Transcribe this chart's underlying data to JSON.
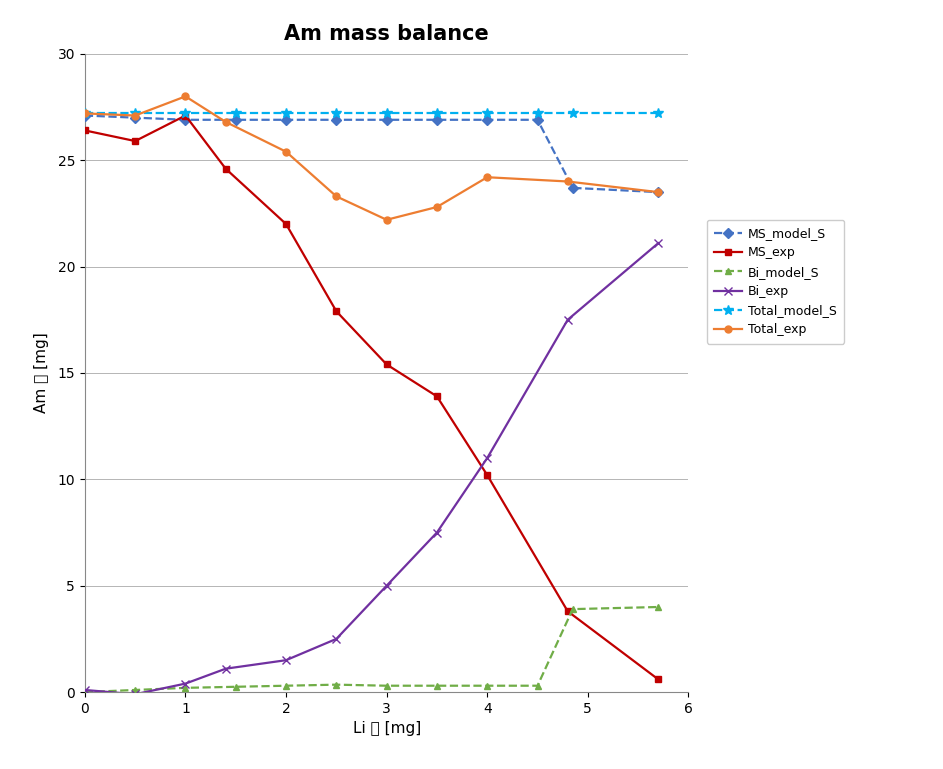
{
  "title": "Am mass balance",
  "xlabel": "Li 양 [mg]",
  "ylabel": "Am 양 [mg]",
  "xlim": [
    0,
    6
  ],
  "ylim": [
    0,
    30
  ],
  "yticks": [
    0,
    5,
    10,
    15,
    20,
    25,
    30
  ],
  "xticks": [
    0,
    1,
    2,
    3,
    4,
    5,
    6
  ],
  "MS_model_S": {
    "x": [
      0,
      0.5,
      1.0,
      1.5,
      2.0,
      2.5,
      3.0,
      3.5,
      4.0,
      4.5,
      4.85,
      5.7
    ],
    "y": [
      27.1,
      27.0,
      26.9,
      26.9,
      26.9,
      26.9,
      26.9,
      26.9,
      26.9,
      26.9,
      23.7,
      23.5
    ],
    "color": "#4472C4",
    "linestyle": "--",
    "marker": "D",
    "markersize": 5,
    "markerfacecolor": "#4472C4",
    "label": "MS_model_S"
  },
  "MS_exp": {
    "x": [
      0,
      0.5,
      1.0,
      1.4,
      2.0,
      2.5,
      3.0,
      3.5,
      4.0,
      4.8,
      5.7
    ],
    "y": [
      26.4,
      25.9,
      27.1,
      24.6,
      22.0,
      17.9,
      15.4,
      13.9,
      10.2,
      3.8,
      0.6
    ],
    "color": "#C00000",
    "linestyle": "-",
    "marker": "s",
    "markersize": 5,
    "markerfacecolor": "#C00000",
    "label": "MS_exp"
  },
  "Bi_model_S": {
    "x": [
      0,
      0.5,
      1.0,
      1.5,
      2.0,
      2.5,
      3.0,
      3.5,
      4.0,
      4.5,
      4.85,
      5.7
    ],
    "y": [
      0.0,
      0.1,
      0.2,
      0.25,
      0.3,
      0.35,
      0.3,
      0.3,
      0.3,
      0.3,
      3.9,
      4.0
    ],
    "color": "#70AD47",
    "linestyle": "--",
    "marker": "^",
    "markersize": 5,
    "markerfacecolor": "#70AD47",
    "label": "Bi_model_S"
  },
  "Bi_exp": {
    "x": [
      0,
      0.5,
      1.0,
      1.4,
      2.0,
      2.5,
      3.0,
      3.5,
      4.0,
      4.8,
      5.7
    ],
    "y": [
      0.1,
      -0.1,
      0.4,
      1.1,
      1.5,
      2.5,
      5.0,
      7.5,
      11.0,
      17.5,
      21.1
    ],
    "color": "#7030A0",
    "linestyle": "-",
    "marker": "x",
    "markersize": 6,
    "markerfacecolor": "#7030A0",
    "label": "Bi_exp"
  },
  "Total_model_S": {
    "x": [
      0,
      0.5,
      1.0,
      1.5,
      2.0,
      2.5,
      3.0,
      3.5,
      4.0,
      4.5,
      4.85,
      5.7
    ],
    "y": [
      27.2,
      27.2,
      27.2,
      27.2,
      27.2,
      27.2,
      27.2,
      27.2,
      27.2,
      27.2,
      27.2,
      27.2
    ],
    "color": "#00B0F0",
    "linestyle": "--",
    "marker": "*",
    "markersize": 7,
    "markerfacecolor": "#00B0F0",
    "label": "Total_model_S"
  },
  "Total_exp": {
    "x": [
      0,
      0.5,
      1.0,
      1.4,
      2.0,
      2.5,
      3.0,
      3.5,
      4.0,
      4.8,
      5.7
    ],
    "y": [
      27.2,
      27.1,
      28.0,
      26.8,
      25.4,
      23.3,
      22.2,
      22.8,
      24.2,
      24.0,
      23.5
    ],
    "color": "#ED7D31",
    "linestyle": "-",
    "marker": "o",
    "markersize": 5,
    "markerfacecolor": "#ED7D31",
    "label": "Total_exp"
  },
  "title_fontsize": 15,
  "axis_label_fontsize": 11,
  "tick_fontsize": 10,
  "legend_fontsize": 9,
  "background_color": "#FFFFFF",
  "grid_color": "#AAAAAA",
  "grid_linestyle": "-",
  "grid_linewidth": 0.6
}
